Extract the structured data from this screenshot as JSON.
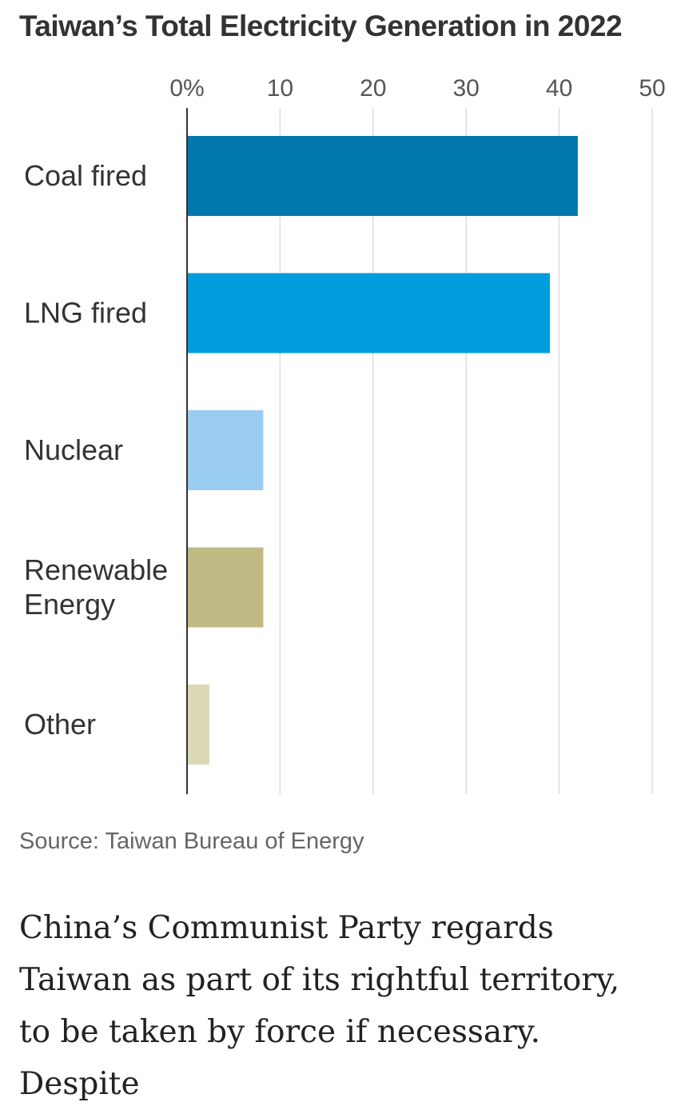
{
  "chart_data": {
    "type": "bar",
    "orientation": "horizontal",
    "title": "Taiwan’s Total Electricity Generation in 2022",
    "categories": [
      "Coal fired",
      "LNG fired",
      "Nuclear",
      "Renewable Energy",
      "Other"
    ],
    "category_lines": [
      [
        "Coal fired"
      ],
      [
        "LNG fired"
      ],
      [
        "Nuclear"
      ],
      [
        "Renewable",
        "Energy"
      ],
      [
        "Other"
      ]
    ],
    "values": [
      42,
      39,
      8.2,
      8.2,
      2.4
    ],
    "colors": [
      "#0077AD",
      "#009CDE",
      "#99CCEE",
      "#BFB983",
      "#DCD8B8"
    ],
    "xlim": [
      0,
      50
    ],
    "xticks": [
      0,
      10,
      20,
      30,
      40,
      50
    ],
    "xtick_labels": [
      "0%",
      "10",
      "20",
      "30",
      "40",
      "50"
    ],
    "xlabel": "",
    "ylabel": "",
    "grid": true,
    "legend": "none"
  },
  "source": "Source: Taiwan Bureau of Energy",
  "article": {
    "text": "China’s Communist Party regards Taiwan as part of its rightful territory, to be taken by force if necessary. Despite"
  }
}
